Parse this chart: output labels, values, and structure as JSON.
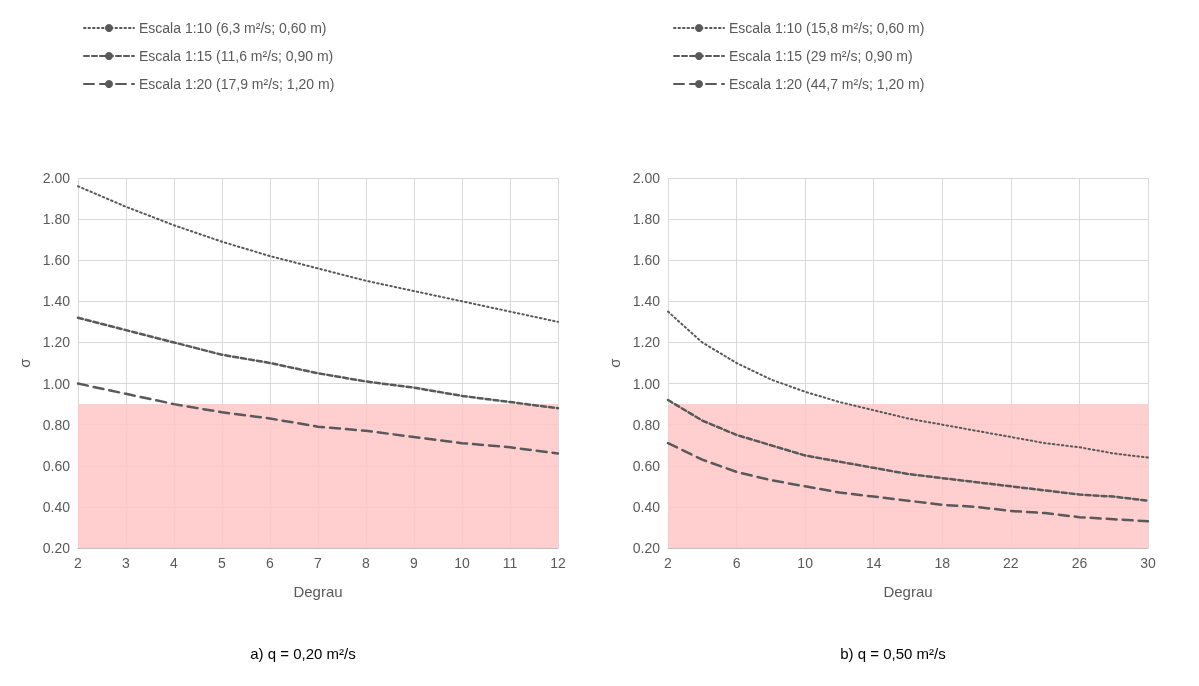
{
  "chart_data": [
    {
      "type": "line",
      "title": "a) q = 0,20 m²/s",
      "xlabel": "Degrau",
      "ylabel": "σ",
      "legend": "top",
      "grid": true,
      "marker": "none",
      "x": [
        2,
        3,
        4,
        5,
        6,
        7,
        8,
        9,
        10,
        11,
        12
      ],
      "xlim": [
        2,
        12
      ],
      "xticks": [
        2,
        3,
        4,
        5,
        6,
        7,
        8,
        9,
        10,
        11,
        12
      ],
      "ylim": [
        0.2,
        2.0
      ],
      "yticks": [
        {
          "value": 0.2,
          "label": "0.20"
        },
        {
          "value": 0.4,
          "label": "0.40"
        },
        {
          "value": 0.6,
          "label": "0.60"
        },
        {
          "value": 0.8,
          "label": "0.80"
        },
        {
          "value": 1.0,
          "label": "1.00"
        },
        {
          "value": 1.2,
          "label": "1.20"
        },
        {
          "value": 1.4,
          "label": "1.40"
        },
        {
          "value": 1.6,
          "label": "1.60"
        },
        {
          "value": 1.8,
          "label": "1.80"
        },
        {
          "value": 2.0,
          "label": "2.00"
        }
      ],
      "bands": [
        {
          "axis": "y",
          "from": 0.2,
          "to": 0.9,
          "color": "#ffc7c7"
        }
      ],
      "series": [
        {
          "name": "Escala 1:10 (6,3 m²/s; 0,60 m)",
          "color": "#595959",
          "line_style": "dotted",
          "values": [
            1.96,
            1.86,
            1.77,
            1.69,
            1.62,
            1.56,
            1.5,
            1.45,
            1.4,
            1.35,
            1.3
          ]
        },
        {
          "name": "Escala 1:15 (11,6 m²/s; 0,90 m)",
          "color": "#595959",
          "line_style": "dashed",
          "values": [
            1.32,
            1.26,
            1.2,
            1.14,
            1.1,
            1.05,
            1.01,
            0.98,
            0.94,
            0.91,
            0.88
          ]
        },
        {
          "name": "Escala 1:20 (17,9 m²/s; 1,20 m)",
          "color": "#595959",
          "line_style": "dashed",
          "values": [
            1.0,
            0.95,
            0.9,
            0.86,
            0.83,
            0.79,
            0.77,
            0.74,
            0.71,
            0.69,
            0.66
          ]
        }
      ]
    },
    {
      "type": "line",
      "title": "b) q = 0,50 m²/s",
      "xlabel": "Degrau",
      "ylabel": "σ",
      "legend": "top",
      "grid": true,
      "marker": "none",
      "x": [
        2,
        4,
        6,
        8,
        10,
        12,
        14,
        16,
        18,
        20,
        22,
        24,
        26,
        28,
        30
      ],
      "xlim": [
        2,
        30
      ],
      "xticks": [
        2,
        6,
        10,
        14,
        18,
        22,
        26,
        30
      ],
      "ylim": [
        0.2,
        2.0
      ],
      "yticks": [
        {
          "value": 0.2,
          "label": "0.20"
        },
        {
          "value": 0.4,
          "label": "0.40"
        },
        {
          "value": 0.6,
          "label": "0.60"
        },
        {
          "value": 0.8,
          "label": "0.80"
        },
        {
          "value": 1.0,
          "label": "1.00"
        },
        {
          "value": 1.2,
          "label": "1.20"
        },
        {
          "value": 1.4,
          "label": "1.40"
        },
        {
          "value": 1.6,
          "label": "1.60"
        },
        {
          "value": 1.8,
          "label": "1.80"
        },
        {
          "value": 2.0,
          "label": "2.00"
        }
      ],
      "bands": [
        {
          "axis": "y",
          "from": 0.2,
          "to": 0.9,
          "color": "#ffc7c7"
        }
      ],
      "series": [
        {
          "name": "Escala 1:10 (15,8 m²/s; 0,60 m)",
          "color": "#595959",
          "line_style": "dotted",
          "values": [
            1.35,
            1.2,
            1.1,
            1.02,
            0.96,
            0.91,
            0.87,
            0.83,
            0.8,
            0.77,
            0.74,
            0.71,
            0.69,
            0.66,
            0.64
          ]
        },
        {
          "name": "Escala 1:15 (29 m²/s; 0,90 m)",
          "color": "#595959",
          "line_style": "dashed",
          "values": [
            0.92,
            0.82,
            0.75,
            0.7,
            0.65,
            0.62,
            0.59,
            0.56,
            0.54,
            0.52,
            0.5,
            0.48,
            0.46,
            0.45,
            0.43
          ]
        },
        {
          "name": "Escala 1:20 (44,7 m²/s; 1,20 m)",
          "color": "#595959",
          "line_style": "dashed",
          "values": [
            0.71,
            0.63,
            0.57,
            0.53,
            0.5,
            0.47,
            0.45,
            0.43,
            0.41,
            0.4,
            0.38,
            0.37,
            0.35,
            0.34,
            0.33
          ]
        }
      ]
    }
  ]
}
